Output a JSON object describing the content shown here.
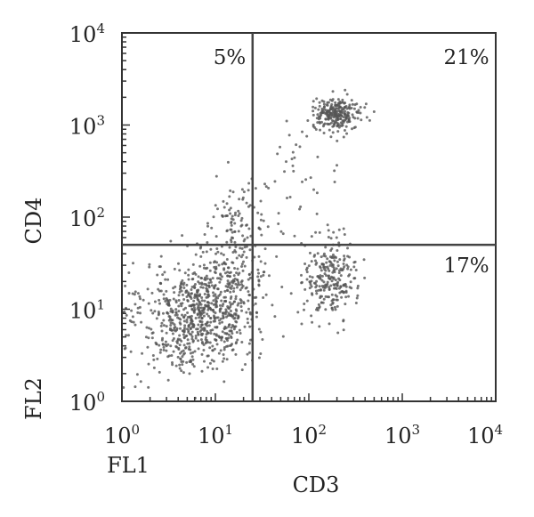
{
  "chart_data": {
    "type": "scatter",
    "title": "",
    "xlabel": "CD3",
    "ylabel": "CD4",
    "x_channel": "FL1",
    "y_channel": "FL2",
    "xscale": "log",
    "yscale": "log",
    "xlim": [
      1,
      10000
    ],
    "ylim": [
      1,
      10000
    ],
    "tick_base": "10",
    "x_tick_exponents": [
      "0",
      "1",
      "2",
      "3",
      "4"
    ],
    "y_tick_exponents": [
      "0",
      "1",
      "2",
      "3",
      "4"
    ],
    "gates": {
      "x": 25,
      "y": 50
    },
    "quadrant_labels": {
      "upper_left": "5%",
      "upper_right": "21%",
      "lower_right": "17%"
    },
    "point_color": "#555555",
    "populations": [
      {
        "center": [
          7,
          9
        ],
        "spread": [
          0.3,
          0.28
        ],
        "count": 650
      },
      {
        "center": [
          3,
          5
        ],
        "spread": [
          0.35,
          0.3
        ],
        "count": 110
      },
      {
        "center": [
          16,
          22
        ],
        "spread": [
          0.2,
          0.22
        ],
        "count": 160
      },
      {
        "center": [
          17,
          90
        ],
        "spread": [
          0.17,
          0.2
        ],
        "count": 90
      },
      {
        "center": [
          170,
          22
        ],
        "spread": [
          0.14,
          0.22
        ],
        "count": 260
      },
      {
        "center": [
          200,
          1300
        ],
        "spread": [
          0.13,
          0.08
        ],
        "count": 260
      },
      {
        "center": [
          60,
          250
        ],
        "spread": [
          0.3,
          0.35
        ],
        "count": 35
      }
    ]
  }
}
